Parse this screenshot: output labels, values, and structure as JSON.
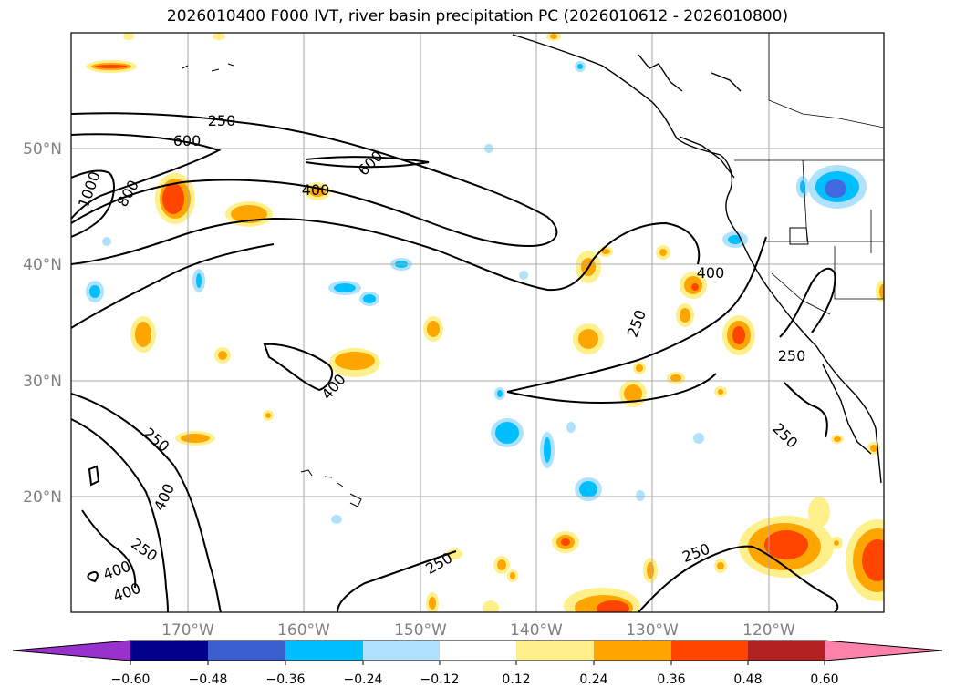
{
  "title": "2026010400 F000 IVT, river basin precipitation PC (2026010612 - 2026010800)",
  "map": {
    "lat_labels": [
      "50°N",
      "40°N",
      "30°N",
      "20°N"
    ],
    "lon_labels": [
      "170°W",
      "160°W",
      "150°W",
      "140°W",
      "130°W",
      "120°W"
    ],
    "contour_labels": [
      "250",
      "600",
      "1000",
      "800",
      "400",
      "600",
      "400",
      "250",
      "250",
      "400",
      "250",
      "250",
      "400",
      "250",
      "250",
      "400",
      "400",
      "250",
      "250"
    ],
    "colors": {
      "pos_012": "#fff08c",
      "pos_024": "#ffa500",
      "pos_036": "#ff4500",
      "neg_024": "#00bfff",
      "neg_036": "#4169e1",
      "neg_012": "#b0e2ff"
    }
  },
  "colorbar": {
    "colors": [
      "#9932cc",
      "#00008b",
      "#3a5fcd",
      "#00bfff",
      "#b0e2ff",
      "#ffffff",
      "#fff08c",
      "#ffa500",
      "#ff4500",
      "#b22222",
      "#ff82ab"
    ],
    "ticks": [
      "−0.60",
      "−0.48",
      "−0.36",
      "−0.24",
      "−0.12",
      "0.12",
      "0.24",
      "0.36",
      "0.48",
      "0.60"
    ]
  }
}
